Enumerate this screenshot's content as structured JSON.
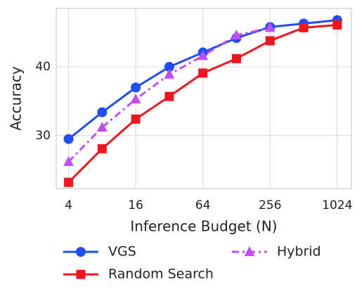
{
  "chart_data": {
    "type": "line",
    "xlabel": "Inference Budget (N)",
    "ylabel": "Accuracy",
    "x": [
      4,
      8,
      16,
      32,
      64,
      128,
      256,
      512,
      1024
    ],
    "xscale": "log2",
    "xlim": [
      3.1,
      1370
    ],
    "xticks": [
      4,
      16,
      64,
      256,
      1024
    ],
    "ylim": [
      22.3,
      48.5
    ],
    "yticks": [
      30,
      40
    ],
    "grid": true,
    "legend": "below",
    "series": [
      {
        "name": "VGS",
        "color": "#1f4ef5",
        "marker": "circle",
        "dash": false,
        "values": [
          29.5,
          33.4,
          37.0,
          40.0,
          42.1,
          44.2,
          45.8,
          46.3,
          46.8
        ]
      },
      {
        "name": "Random Search",
        "color": "#f0141e",
        "marker": "square",
        "dash": false,
        "values": [
          23.2,
          28.1,
          32.4,
          35.7,
          39.1,
          41.2,
          43.8,
          45.7,
          46.1
        ]
      },
      {
        "name": "Hybrid",
        "color": "#c04ef5",
        "marker": "triangle",
        "dash": true,
        "values": [
          26.2,
          31.2,
          35.3,
          38.9,
          41.6,
          44.6,
          45.7,
          null,
          null
        ]
      }
    ]
  }
}
